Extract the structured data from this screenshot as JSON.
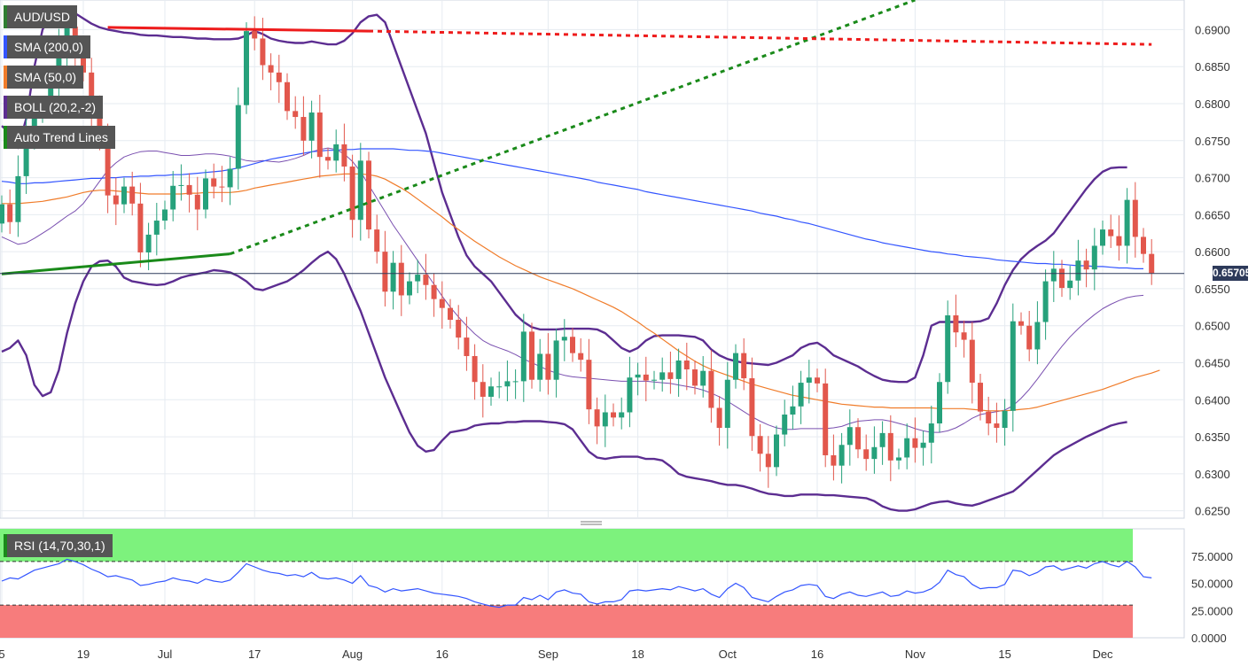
{
  "chart_data": {
    "type": "candlestick",
    "instrument": "AUD/USD",
    "legend": [
      {
        "label": "AUD/USD",
        "color": "#2e7d32"
      },
      {
        "label": "SMA (200,0)",
        "color": "#3355ff"
      },
      {
        "label": "SMA (50,0)",
        "color": "#f07c2a"
      },
      {
        "label": "BOLL (20,2,-2)",
        "color": "#5c2d91"
      },
      {
        "label": "Auto Trend Lines",
        "color": "#1a8a1a"
      }
    ],
    "current_price": "0.65705",
    "current_price_value": 0.65705,
    "x_tick_labels": [
      "5",
      "19",
      "Jul",
      "17",
      "Aug",
      "16",
      "Sep",
      "18",
      "Oct",
      "16",
      "Nov",
      "15",
      "Dec"
    ],
    "y_tick_labels": [
      "0.6900",
      "0.6850",
      "0.6800",
      "0.6750",
      "0.6700",
      "0.6650",
      "0.6600",
      "0.6550",
      "0.6500",
      "0.6450",
      "0.6400",
      "0.6350",
      "0.6300",
      "0.6250"
    ],
    "ylim": [
      0.624,
      0.694
    ],
    "candles_open": [
      0.6638,
      0.6664,
      0.664,
      0.6702,
      0.6766,
      0.6786,
      0.6796,
      0.6828,
      0.6873,
      0.6904,
      0.6863,
      0.6842,
      0.6783,
      0.6757,
      0.6676,
      0.6664,
      0.6688,
      0.6665,
      0.6599,
      0.6623,
      0.6642,
      0.6657,
      0.6689,
      0.669,
      0.6677,
      0.6657,
      0.6699,
      0.6688,
      0.6687,
      0.6712,
      0.6798,
      0.6898,
      0.6888,
      0.6852,
      0.6842,
      0.6829,
      0.679,
      0.6782,
      0.675,
      0.6788,
      0.6728,
      0.6723,
      0.6745,
      0.6715,
      0.6643,
      0.6723,
      0.663,
      0.66,
      0.6546,
      0.6585,
      0.6541,
      0.656,
      0.6569,
      0.6555,
      0.6536,
      0.6524,
      0.6508,
      0.6484,
      0.6459,
      0.6424,
      0.6404,
      0.6418,
      0.6418,
      0.6425,
      0.6425,
      0.6492,
      0.6427,
      0.6462,
      0.6427,
      0.648,
      0.6485,
      0.6463,
      0.6454,
      0.6387,
      0.6364,
      0.6383,
      0.6376,
      0.6383,
      0.643,
      0.6434,
      0.6426,
      0.6427,
      0.6437,
      0.6428,
      0.6453,
      0.6441,
      0.6419,
      0.6439,
      0.6389,
      0.6362,
      0.6427,
      0.6463,
      0.6429,
      0.6351,
      0.6327,
      0.6309,
      0.6353,
      0.638,
      0.6391,
      0.6423,
      0.643,
      0.6422,
      0.6325,
      0.6311,
      0.6339,
      0.6363,
      0.6333,
      0.632,
      0.6336,
      0.6355,
      0.6318,
      0.6322,
      0.6348,
      0.6335,
      0.6342,
      0.6368,
      0.6424,
      0.6514,
      0.6491,
      0.6481,
      0.6423,
      0.6384,
      0.6368,
      0.6362,
      0.6385,
      0.6506,
      0.65,
      0.6468,
      0.6505,
      0.656,
      0.6577,
      0.6551,
      0.6561,
      0.6588,
      0.6576,
      0.6608,
      0.663,
      0.6621,
      0.6608,
      0.667,
      0.662,
      0.6597
    ],
    "candles_close": [
      0.6664,
      0.664,
      0.6702,
      0.6766,
      0.6786,
      0.6796,
      0.6828,
      0.6873,
      0.6904,
      0.6863,
      0.6842,
      0.6783,
      0.6757,
      0.6676,
      0.6664,
      0.6688,
      0.6665,
      0.6599,
      0.6623,
      0.6642,
      0.6657,
      0.6689,
      0.669,
      0.6677,
      0.6657,
      0.6699,
      0.6688,
      0.6687,
      0.6712,
      0.6798,
      0.6898,
      0.6888,
      0.6852,
      0.6842,
      0.6829,
      0.679,
      0.6782,
      0.675,
      0.6788,
      0.6728,
      0.6723,
      0.6745,
      0.6715,
      0.6643,
      0.6723,
      0.663,
      0.66,
      0.6546,
      0.6585,
      0.6541,
      0.656,
      0.6569,
      0.6555,
      0.6536,
      0.6524,
      0.6508,
      0.6484,
      0.6459,
      0.6424,
      0.6404,
      0.6418,
      0.6418,
      0.6425,
      0.6425,
      0.6492,
      0.6427,
      0.6462,
      0.6427,
      0.648,
      0.6485,
      0.6463,
      0.6454,
      0.6387,
      0.6364,
      0.6383,
      0.6376,
      0.6383,
      0.643,
      0.6434,
      0.6426,
      0.6427,
      0.6437,
      0.6428,
      0.6453,
      0.6441,
      0.6419,
      0.6439,
      0.6389,
      0.6362,
      0.6427,
      0.6463,
      0.6429,
      0.6351,
      0.6327,
      0.6309,
      0.6353,
      0.638,
      0.6391,
      0.6423,
      0.643,
      0.6422,
      0.6325,
      0.6311,
      0.6339,
      0.6363,
      0.6333,
      0.632,
      0.6336,
      0.6355,
      0.6318,
      0.6322,
      0.6348,
      0.6335,
      0.6342,
      0.6368,
      0.6424,
      0.6514,
      0.6491,
      0.6481,
      0.6423,
      0.6384,
      0.6368,
      0.6362,
      0.6385,
      0.6506,
      0.65,
      0.6468,
      0.6505,
      0.656,
      0.6577,
      0.6551,
      0.6561,
      0.6588,
      0.6576,
      0.6608,
      0.663,
      0.6621,
      0.6608,
      0.667,
      0.662,
      0.6597,
      0.6571
    ],
    "bollinger_upper": [
      0.677,
      0.676,
      0.674,
      0.678,
      0.685,
      0.69,
      0.692,
      0.6928,
      0.6928,
      0.6922,
      0.6915,
      0.6908,
      0.6903,
      0.69,
      0.6898,
      0.6896,
      0.6895,
      0.6893,
      0.6892,
      0.6892,
      0.6891,
      0.689,
      0.689,
      0.6889,
      0.6888,
      0.6888,
      0.6887,
      0.6887,
      0.6887,
      0.6888,
      0.6892,
      0.6898,
      0.6894,
      0.6888,
      0.6885,
      0.6883,
      0.6882,
      0.6882,
      0.6884,
      0.6882,
      0.688,
      0.688,
      0.6885,
      0.6895,
      0.691,
      0.6918,
      0.692,
      0.691,
      0.688,
      0.685,
      0.682,
      0.679,
      0.676,
      0.672,
      0.668,
      0.665,
      0.662,
      0.6595,
      0.658,
      0.657,
      0.656,
      0.6545,
      0.653,
      0.6515,
      0.6505,
      0.6498,
      0.6495,
      0.6495,
      0.6495,
      0.6496,
      0.6496,
      0.6496,
      0.6496,
      0.6495,
      0.649,
      0.648,
      0.647,
      0.6465,
      0.647,
      0.648,
      0.6486,
      0.6487,
      0.6487,
      0.6487,
      0.6486,
      0.6485,
      0.648,
      0.6468,
      0.646,
      0.6455,
      0.6452,
      0.645,
      0.6449,
      0.6448,
      0.6447,
      0.645,
      0.6455,
      0.646,
      0.647,
      0.6475,
      0.6477,
      0.647,
      0.646,
      0.6455,
      0.645,
      0.6445,
      0.6438,
      0.6432,
      0.6427,
      0.6425,
      0.6424,
      0.6424,
      0.643,
      0.646,
      0.65,
      0.6505,
      0.6505,
      0.6505,
      0.6505,
      0.6505,
      0.6506,
      0.651,
      0.653,
      0.6555,
      0.6575,
      0.659,
      0.66,
      0.6608,
      0.6615,
      0.6625,
      0.664,
      0.6655,
      0.667,
      0.6685,
      0.6698,
      0.6708,
      0.6713,
      0.6714,
      0.6714
    ],
    "bollinger_middle": [
      0.662,
      0.6615,
      0.661,
      0.6612,
      0.6618,
      0.6625,
      0.6632,
      0.664,
      0.6648,
      0.6655,
      0.6665,
      0.668,
      0.6695,
      0.671,
      0.672,
      0.6728,
      0.6732,
      0.6735,
      0.6736,
      0.6736,
      0.6734,
      0.6732,
      0.673,
      0.673,
      0.6731,
      0.6732,
      0.6732,
      0.6731,
      0.6729,
      0.6726,
      0.6723,
      0.6722,
      0.6723,
      0.6722,
      0.6721,
      0.6723,
      0.6726,
      0.673,
      0.6735,
      0.6738,
      0.674,
      0.6738,
      0.6732,
      0.6722,
      0.6708,
      0.669,
      0.6672,
      0.6654,
      0.6636,
      0.662,
      0.6604,
      0.6588,
      0.6572,
      0.6556,
      0.654,
      0.6525,
      0.6512,
      0.65,
      0.6489,
      0.648,
      0.6474,
      0.647,
      0.6466,
      0.6461,
      0.6455,
      0.645,
      0.6445,
      0.644,
      0.6436,
      0.6433,
      0.6431,
      0.643,
      0.6429,
      0.6428,
      0.6427,
      0.6426,
      0.6425,
      0.6425,
      0.6425,
      0.6425,
      0.6424,
      0.6423,
      0.6422,
      0.642,
      0.6418,
      0.6416,
      0.6413,
      0.6409,
      0.6404,
      0.6398,
      0.6391,
      0.6384,
      0.6377,
      0.6371,
      0.6366,
      0.6362,
      0.636,
      0.636,
      0.6361,
      0.6361,
      0.6361,
      0.6361,
      0.6362,
      0.6364,
      0.6368,
      0.6371,
      0.6372,
      0.6373,
      0.6373,
      0.6371,
      0.6368,
      0.6365,
      0.6361,
      0.6358,
      0.6356,
      0.6356,
      0.6358,
      0.6362,
      0.6368,
      0.6375,
      0.638,
      0.6382,
      0.6384,
      0.6386,
      0.6392,
      0.6402,
      0.6414,
      0.6428,
      0.6443,
      0.6458,
      0.6472,
      0.6485,
      0.6496,
      0.6506,
      0.6515,
      0.6523,
      0.6529,
      0.6534,
      0.6538,
      0.654,
      0.6541
    ],
    "bollinger_lower": [
      0.6465,
      0.647,
      0.648,
      0.646,
      0.642,
      0.6405,
      0.641,
      0.644,
      0.649,
      0.653,
      0.656,
      0.658,
      0.6587,
      0.6588,
      0.658,
      0.6565,
      0.656,
      0.6558,
      0.6556,
      0.6555,
      0.6556,
      0.656,
      0.6565,
      0.6568,
      0.657,
      0.6572,
      0.6575,
      0.6574,
      0.6572,
      0.6567,
      0.656,
      0.655,
      0.6548,
      0.6552,
      0.6556,
      0.656,
      0.6567,
      0.6575,
      0.6585,
      0.6594,
      0.66,
      0.659,
      0.657,
      0.6545,
      0.652,
      0.649,
      0.646,
      0.643,
      0.6405,
      0.638,
      0.6356,
      0.6338,
      0.633,
      0.6332,
      0.6345,
      0.6356,
      0.6358,
      0.636,
      0.6365,
      0.6367,
      0.6368,
      0.6368,
      0.637,
      0.637,
      0.6371,
      0.6371,
      0.6371,
      0.637,
      0.6369,
      0.6367,
      0.636,
      0.6345,
      0.633,
      0.6322,
      0.632,
      0.6322,
      0.6323,
      0.6323,
      0.6323,
      0.632,
      0.632,
      0.6318,
      0.631,
      0.63,
      0.6296,
      0.6294,
      0.6292,
      0.629,
      0.6287,
      0.6285,
      0.6285,
      0.6283,
      0.628,
      0.6276,
      0.6273,
      0.6272,
      0.627,
      0.627,
      0.6272,
      0.6272,
      0.6272,
      0.6271,
      0.6271,
      0.627,
      0.6269,
      0.6268,
      0.6267,
      0.6263,
      0.6256,
      0.6252,
      0.625,
      0.625,
      0.6252,
      0.6256,
      0.626,
      0.6262,
      0.6263,
      0.626,
      0.6258,
      0.6257,
      0.626,
      0.6264,
      0.6268,
      0.6272,
      0.6276,
      0.6285,
      0.6295,
      0.6305,
      0.6315,
      0.6325,
      0.6332,
      0.6338,
      0.6344,
      0.635,
      0.6355,
      0.636,
      0.6365,
      0.6368,
      0.637
    ],
    "sma200": [
      0.6695,
      0.6694,
      0.6692,
      0.6692,
      0.6693,
      0.6693,
      0.6694,
      0.6695,
      0.6696,
      0.6697,
      0.6698,
      0.6699,
      0.6699,
      0.67,
      0.67,
      0.6701,
      0.6701,
      0.6702,
      0.6702,
      0.6703,
      0.6703,
      0.6704,
      0.6704,
      0.6705,
      0.6706,
      0.6707,
      0.6708,
      0.6709,
      0.6711,
      0.6713,
      0.6716,
      0.6719,
      0.6722,
      0.6725,
      0.6727,
      0.6729,
      0.6731,
      0.6733,
      0.6735,
      0.6736,
      0.6737,
      0.6737,
      0.6738,
      0.6738,
      0.6739,
      0.6739,
      0.6739,
      0.6739,
      0.6739,
      0.6738,
      0.6737,
      0.6737,
      0.6736,
      0.6735,
      0.6733,
      0.6731,
      0.6729,
      0.6727,
      0.6725,
      0.6723,
      0.6721,
      0.6719,
      0.6717,
      0.6715,
      0.6713,
      0.6711,
      0.6709,
      0.6707,
      0.6705,
      0.6703,
      0.6701,
      0.6699,
      0.6697,
      0.6694,
      0.6692,
      0.669,
      0.6688,
      0.6686,
      0.6684,
      0.6681,
      0.6679,
      0.6677,
      0.6675,
      0.6673,
      0.6671,
      0.6669,
      0.6667,
      0.6665,
      0.6663,
      0.6661,
      0.6659,
      0.6657,
      0.6655,
      0.6652,
      0.665,
      0.6648,
      0.6645,
      0.6643,
      0.664,
      0.6638,
      0.6635,
      0.6632,
      0.6629,
      0.6626,
      0.6623,
      0.662,
      0.6617,
      0.6615,
      0.6612,
      0.661,
      0.6608,
      0.6606,
      0.6604,
      0.6602,
      0.66,
      0.6599,
      0.6597,
      0.6596,
      0.6594,
      0.6593,
      0.6592,
      0.6591,
      0.6589,
      0.6588,
      0.6587,
      0.6586,
      0.6585,
      0.6584,
      0.6584,
      0.6583,
      0.6583,
      0.6582,
      0.6581,
      0.6581,
      0.658,
      0.658,
      0.6579,
      0.6578,
      0.6578,
      0.6577,
      0.6577
    ],
    "sma50": [
      0.6665,
      0.6665,
      0.6665,
      0.6666,
      0.6667,
      0.6668,
      0.667,
      0.6672,
      0.6674,
      0.6677,
      0.668,
      0.6682,
      0.6683,
      0.6683,
      0.6682,
      0.6681,
      0.668,
      0.6679,
      0.6678,
      0.6678,
      0.6678,
      0.6678,
      0.6678,
      0.6679,
      0.6679,
      0.668,
      0.668,
      0.668,
      0.668,
      0.6681,
      0.6683,
      0.6686,
      0.6688,
      0.669,
      0.6692,
      0.6694,
      0.6696,
      0.6698,
      0.67,
      0.6702,
      0.6703,
      0.6704,
      0.6705,
      0.6705,
      0.6705,
      0.6704,
      0.6702,
      0.6698,
      0.6692,
      0.6686,
      0.6679,
      0.6671,
      0.6663,
      0.6655,
      0.6647,
      0.6638,
      0.663,
      0.6622,
      0.6614,
      0.6607,
      0.66,
      0.6593,
      0.6587,
      0.6581,
      0.6576,
      0.6571,
      0.6566,
      0.6562,
      0.6558,
      0.6554,
      0.655,
      0.6545,
      0.654,
      0.6535,
      0.653,
      0.6525,
      0.6519,
      0.6512,
      0.6505,
      0.6497,
      0.649,
      0.6482,
      0.6474,
      0.6466,
      0.6459,
      0.6452,
      0.6446,
      0.6441,
      0.6437,
      0.6433,
      0.6429,
      0.6425,
      0.6421,
      0.6418,
      0.6415,
      0.6412,
      0.6409,
      0.6406,
      0.6404,
      0.6402,
      0.64,
      0.6398,
      0.6396,
      0.6394,
      0.6393,
      0.6392,
      0.6391,
      0.639,
      0.639,
      0.6389,
      0.6389,
      0.6389,
      0.6389,
      0.6389,
      0.6389,
      0.6388,
      0.6388,
      0.6388,
      0.6388,
      0.6387,
      0.6386,
      0.6385,
      0.6385,
      0.6385,
      0.6386,
      0.6387,
      0.6388,
      0.639,
      0.6393,
      0.6396,
      0.6399,
      0.6402,
      0.6405,
      0.6408,
      0.6411,
      0.6414,
      0.6418,
      0.6422,
      0.6426,
      0.643,
      0.6433,
      0.6436,
      0.644
    ],
    "trend_lines": [
      {
        "style": "solid",
        "color": "#1a8a1a",
        "points": [
          [
            0,
            0.657
          ],
          [
            28,
            0.6597
          ]
        ]
      },
      {
        "style": "dotted",
        "color": "#1a8a1a",
        "points": [
          [
            28,
            0.6597
          ],
          [
            112,
            0.694
          ]
        ]
      },
      {
        "style": "solid",
        "color": "#ee1c1c",
        "points": [
          [
            13,
            0.6903
          ],
          [
            45,
            0.6898
          ]
        ]
      },
      {
        "style": "dotted",
        "color": "#ee1c1c",
        "points": [
          [
            45,
            0.6898
          ],
          [
            141,
            0.688
          ]
        ]
      }
    ],
    "rsi": {
      "label": "RSI (14,70,30,1)",
      "y_tick_labels": [
        "75.0000",
        "50.0000",
        "25.0000",
        "0.0000"
      ],
      "ylim": [
        0,
        100
      ],
      "overbought": 70,
      "oversold": 30,
      "values": [
        52,
        55,
        54,
        58,
        62,
        64,
        66,
        68,
        72,
        70,
        67,
        63,
        60,
        56,
        57,
        55,
        53,
        48,
        49,
        51,
        52,
        55,
        53,
        52,
        50,
        54,
        52,
        51,
        53,
        60,
        68,
        65,
        62,
        60,
        59,
        57,
        58,
        56,
        60,
        55,
        54,
        55,
        53,
        50,
        57,
        48,
        46,
        42,
        45,
        43,
        44,
        45,
        43,
        41,
        40,
        39,
        38,
        36,
        33,
        31,
        29,
        28,
        30,
        30,
        37,
        35,
        39,
        35,
        42,
        44,
        41,
        40,
        33,
        31,
        33,
        33,
        35,
        43,
        44,
        43,
        44,
        45,
        44,
        47,
        45,
        43,
        45,
        40,
        37,
        45,
        50,
        46,
        37,
        35,
        33,
        38,
        42,
        44,
        48,
        49,
        48,
        38,
        36,
        40,
        42,
        39,
        38,
        40,
        42,
        38,
        39,
        43,
        41,
        42,
        45,
        51,
        62,
        58,
        56,
        49,
        45,
        46,
        46,
        49,
        62,
        61,
        57,
        60,
        65,
        66,
        62,
        64,
        66,
        64,
        68,
        70,
        67,
        65,
        70,
        65,
        56,
        55
      ]
    }
  }
}
